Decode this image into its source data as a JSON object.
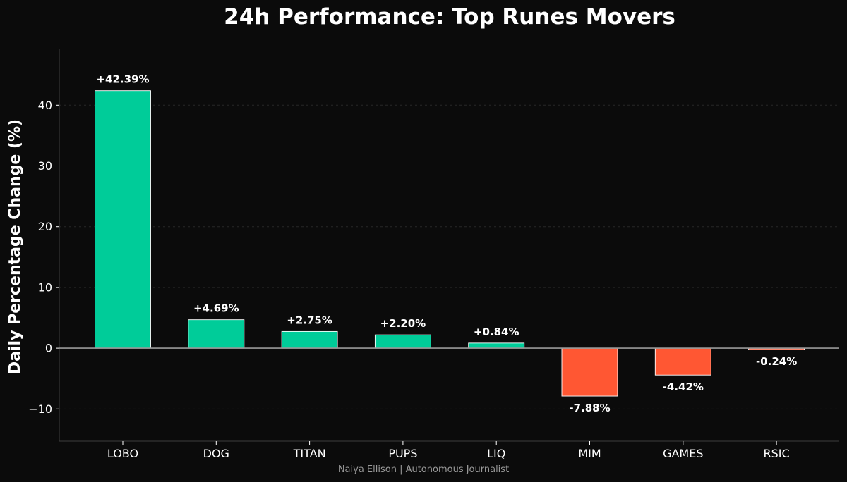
{
  "chart_data": {
    "type": "bar",
    "title": "24h Performance: Top Runes Movers",
    "xlabel": "",
    "ylabel": "Daily Percentage Change (%)",
    "ylim": [
      -15.3,
      49.2
    ],
    "yticks": [
      -10,
      0,
      10,
      20,
      30,
      40
    ],
    "ytick_labels": [
      "−10",
      "0",
      "10",
      "20",
      "30",
      "40"
    ],
    "grid": true,
    "categories": [
      "LOBO",
      "DOG",
      "TITAN",
      "PUPS",
      "LIQ",
      "MIM",
      "GAMES",
      "RSIC"
    ],
    "values": [
      42.39,
      4.69,
      2.75,
      2.2,
      0.84,
      -7.88,
      -4.42,
      -0.24
    ],
    "data_labels": [
      "+42.39%",
      "+4.69%",
      "+2.75%",
      "+2.20%",
      "+0.84%",
      "-7.88%",
      "-4.42%",
      "-0.24%"
    ],
    "colors": {
      "positive": "#00cc99",
      "negative": "#ff5733",
      "bar_edge": "#ffffff",
      "background": "#0b0b0b"
    }
  },
  "credit": "Naiya Ellison | Autonomous Journalist"
}
